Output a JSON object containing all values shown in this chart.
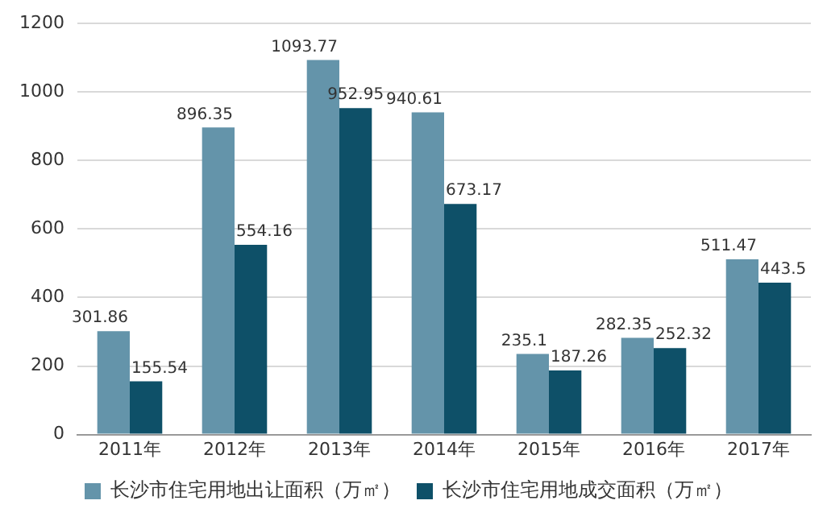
{
  "chart_data": {
    "type": "bar",
    "categories": [
      "2011年",
      "2012年",
      "2013年",
      "2014年",
      "2015年",
      "2016年",
      "2017年"
    ],
    "series": [
      {
        "name": "长沙市住宅用地出让面积（万㎡）",
        "color": "#6494aa",
        "values": [
          301.86,
          896.35,
          1093.77,
          940.61,
          235.1,
          282.35,
          511.47
        ]
      },
      {
        "name": "长沙市住宅用地成交面积（万㎡）",
        "color": "#0e5068",
        "values": [
          155.54,
          554.16,
          952.95,
          673.17,
          187.26,
          252.32,
          443.5
        ]
      }
    ],
    "ylim": [
      0,
      1200
    ],
    "yticks": [
      0,
      200,
      400,
      600,
      800,
      1000,
      1200
    ],
    "grid": "y",
    "legend": "bottom",
    "data_labels": true
  }
}
